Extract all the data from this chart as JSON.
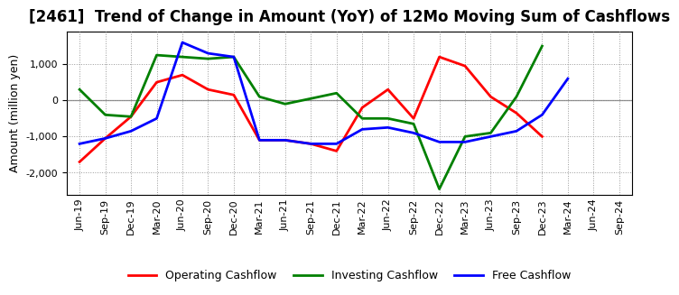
{
  "title": "[2461]  Trend of Change in Amount (YoY) of 12Mo Moving Sum of Cashflows",
  "ylabel": "Amount (million yen)",
  "x_labels": [
    "Jun-19",
    "Sep-19",
    "Dec-19",
    "Mar-20",
    "Jun-20",
    "Sep-20",
    "Dec-20",
    "Mar-21",
    "Jun-21",
    "Sep-21",
    "Dec-21",
    "Mar-22",
    "Jun-22",
    "Sep-22",
    "Dec-22",
    "Mar-23",
    "Jun-23",
    "Sep-23",
    "Dec-23",
    "Mar-24",
    "Jun-24",
    "Sep-24"
  ],
  "operating": [
    -1700,
    -1050,
    -450,
    500,
    700,
    300,
    150,
    -1100,
    -1100,
    -1200,
    -1400,
    -200,
    300,
    -500,
    1200,
    950,
    100,
    -350,
    -1000,
    null,
    null,
    null
  ],
  "investing": [
    300,
    -400,
    -450,
    1250,
    1200,
    1150,
    1200,
    100,
    -100,
    50,
    200,
    -500,
    -500,
    -650,
    -2450,
    -1000,
    -900,
    100,
    1500,
    null,
    null,
    null
  ],
  "free": [
    -1200,
    -1050,
    -850,
    -500,
    1600,
    1300,
    1200,
    -1100,
    -1100,
    -1200,
    -1200,
    -800,
    -750,
    -900,
    -1150,
    -1150,
    -1000,
    -850,
    -400,
    600,
    null,
    null
  ],
  "operating_color": "#ff0000",
  "investing_color": "#008000",
  "free_color": "#0000ff",
  "bg_color": "#ffffff",
  "plot_bg_color": "#ffffff",
  "grid_color": "#999999",
  "ylim": [
    -2600,
    1900
  ],
  "yticks": [
    -2000,
    -1000,
    0,
    1000
  ],
  "title_fontsize": 12,
  "axis_label_fontsize": 9,
  "tick_fontsize": 8,
  "legend_fontsize": 9,
  "linewidth": 2.0
}
